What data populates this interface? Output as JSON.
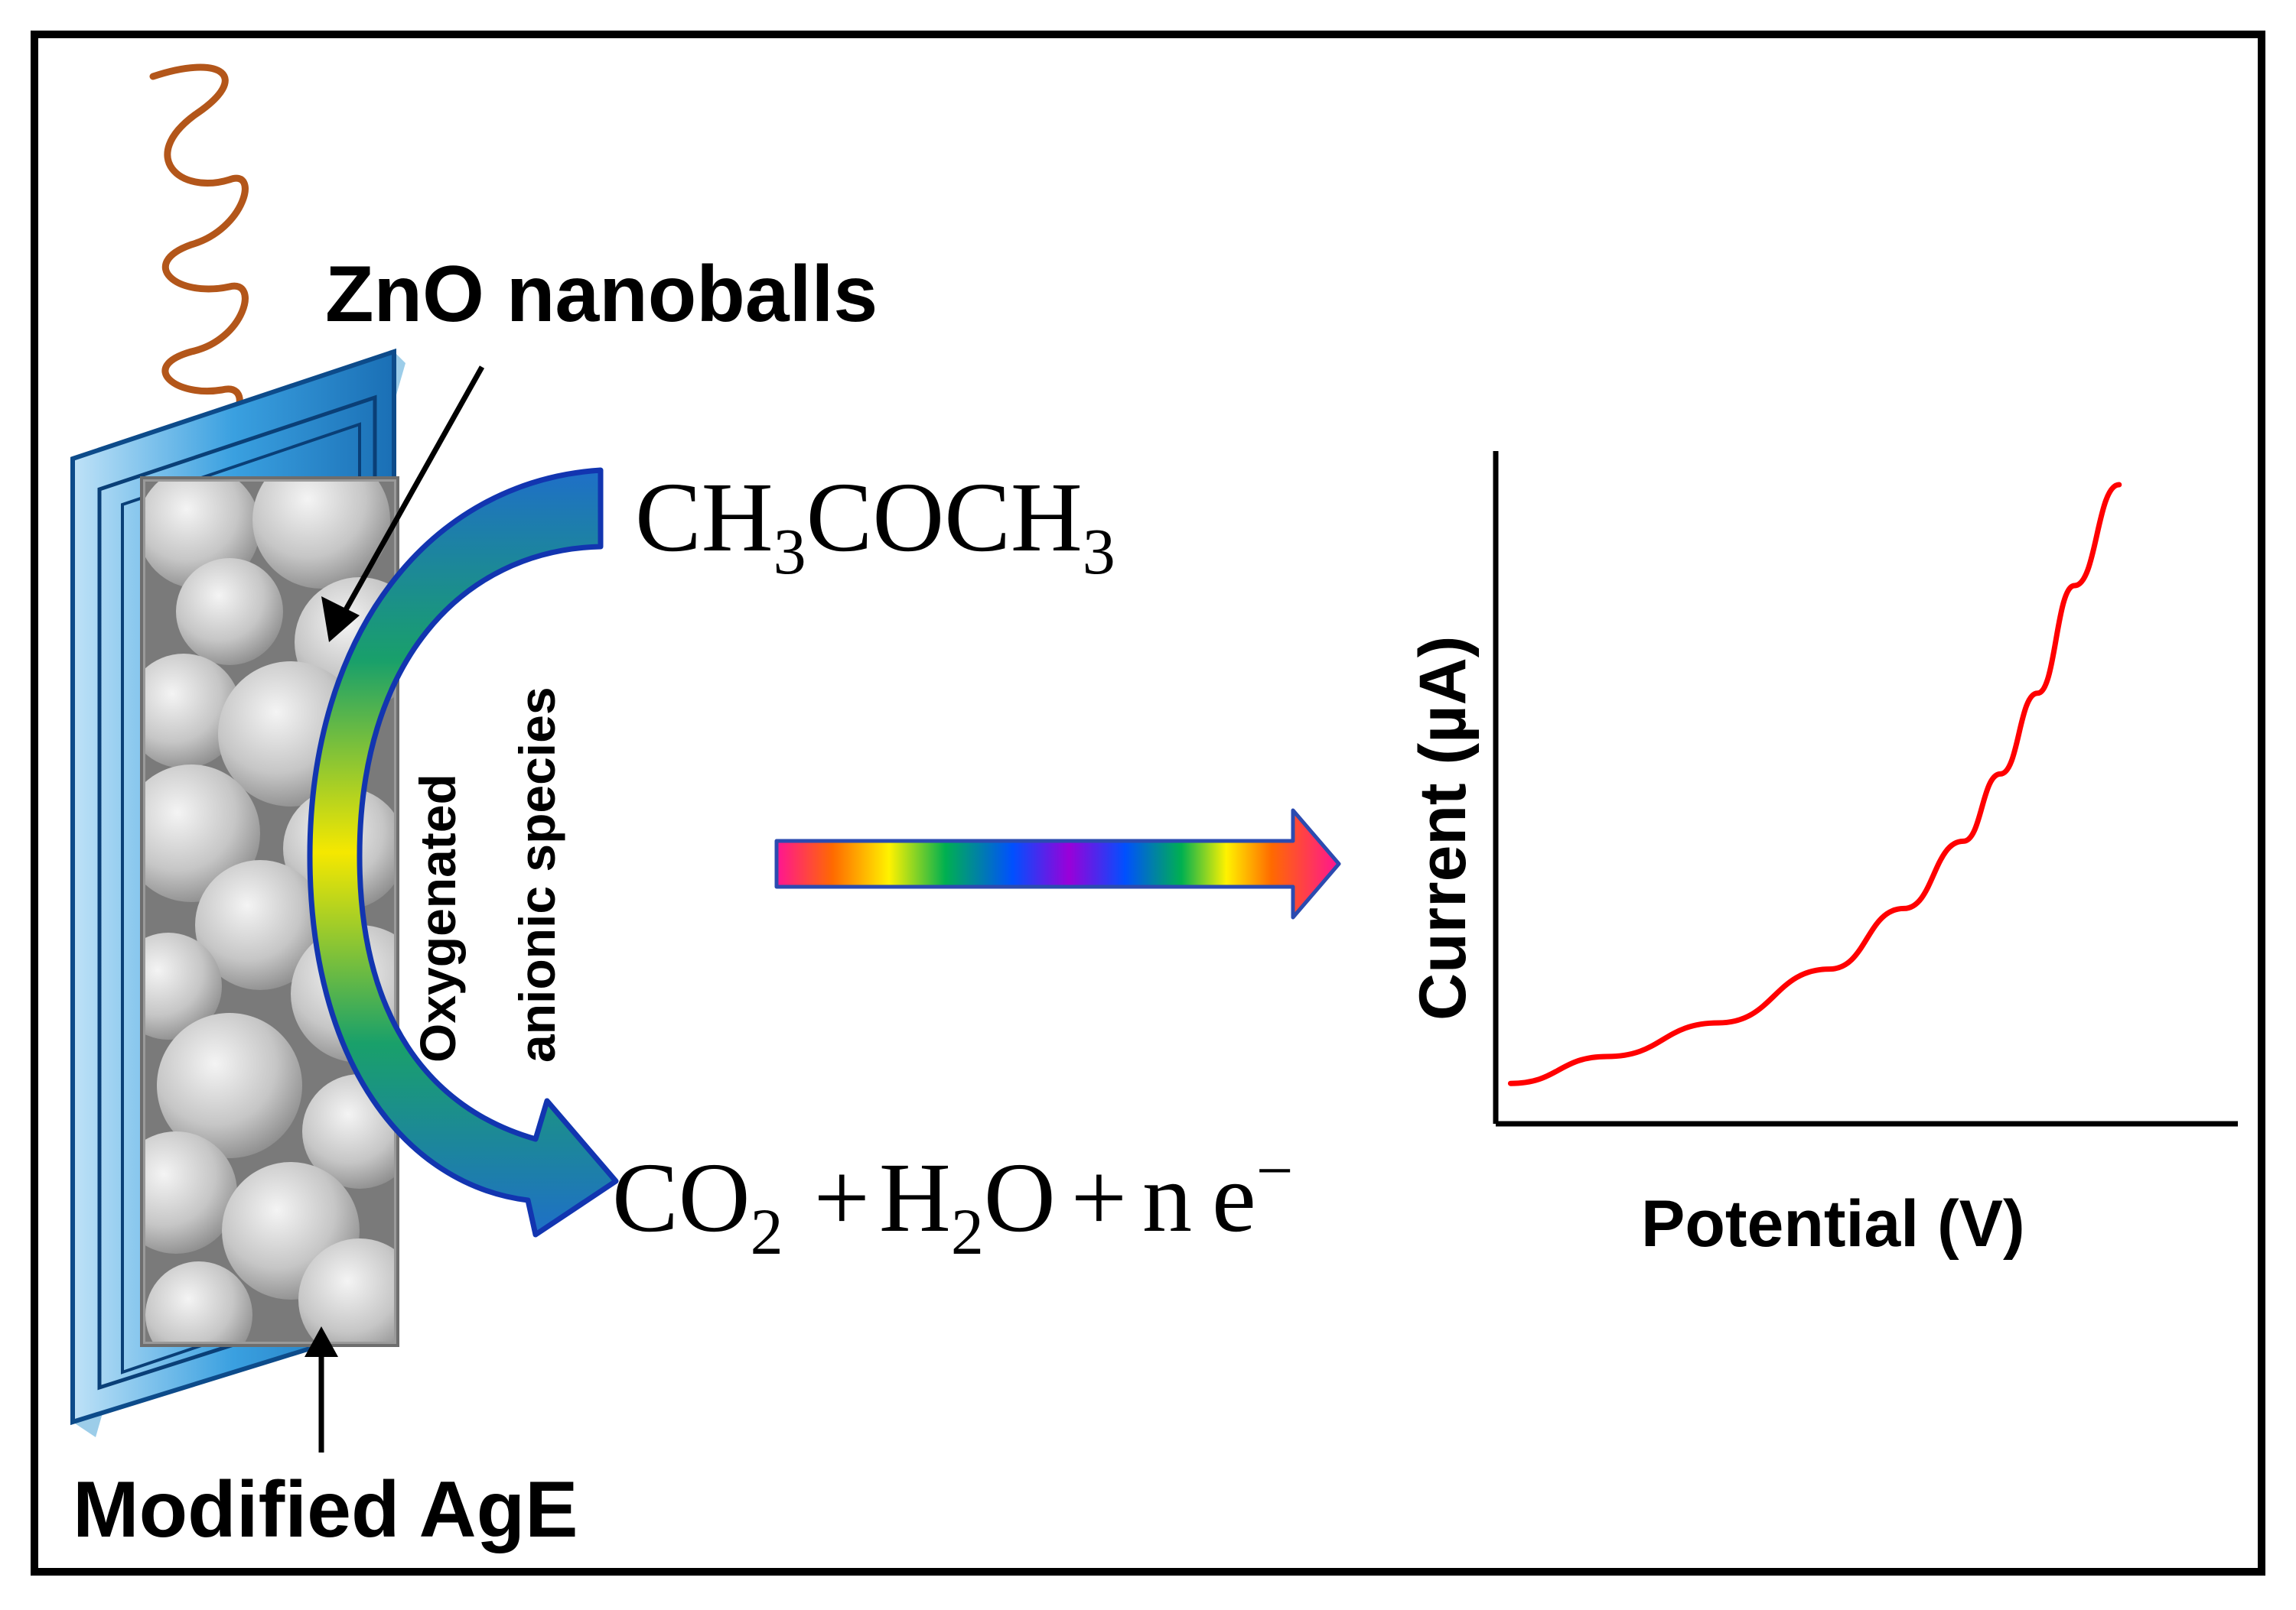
{
  "labels": {
    "zno": "ZnO nanoballs",
    "electrode": "Modified AgE",
    "oxygenated_line1": "Oxygenated",
    "oxygenated_line2": "anionic species"
  },
  "reactant": {
    "p1": "CH",
    "s1": "3",
    "p2": "COCH",
    "s2": "3"
  },
  "products": {
    "co": "CO",
    "co_sub": "2",
    "plus1": "+",
    "h": "H",
    "h_sub": "2",
    "o": "O",
    "plus2": "+",
    "n": "n",
    "e": "e",
    "e_sup": "−"
  },
  "chart_data": {
    "type": "line",
    "title": "",
    "xlabel": "Potential (V)",
    "ylabel": "Current (µA)",
    "xlim": [
      0,
      1
    ],
    "ylim": [
      0,
      1
    ],
    "grid": false,
    "ticks": "none",
    "series": [
      {
        "name": "response",
        "color": "#ff0000",
        "x": [
          0.02,
          0.15,
          0.3,
          0.45,
          0.55,
          0.63,
          0.68,
          0.73,
          0.78,
          0.84
        ],
        "y": [
          0.06,
          0.1,
          0.15,
          0.23,
          0.32,
          0.42,
          0.52,
          0.64,
          0.8,
          0.95
        ]
      }
    ]
  },
  "colors": {
    "frame": "#000000",
    "electrode_blue": "#2e8fd6",
    "wire": "#b3561a",
    "curve": "#ff0000"
  }
}
